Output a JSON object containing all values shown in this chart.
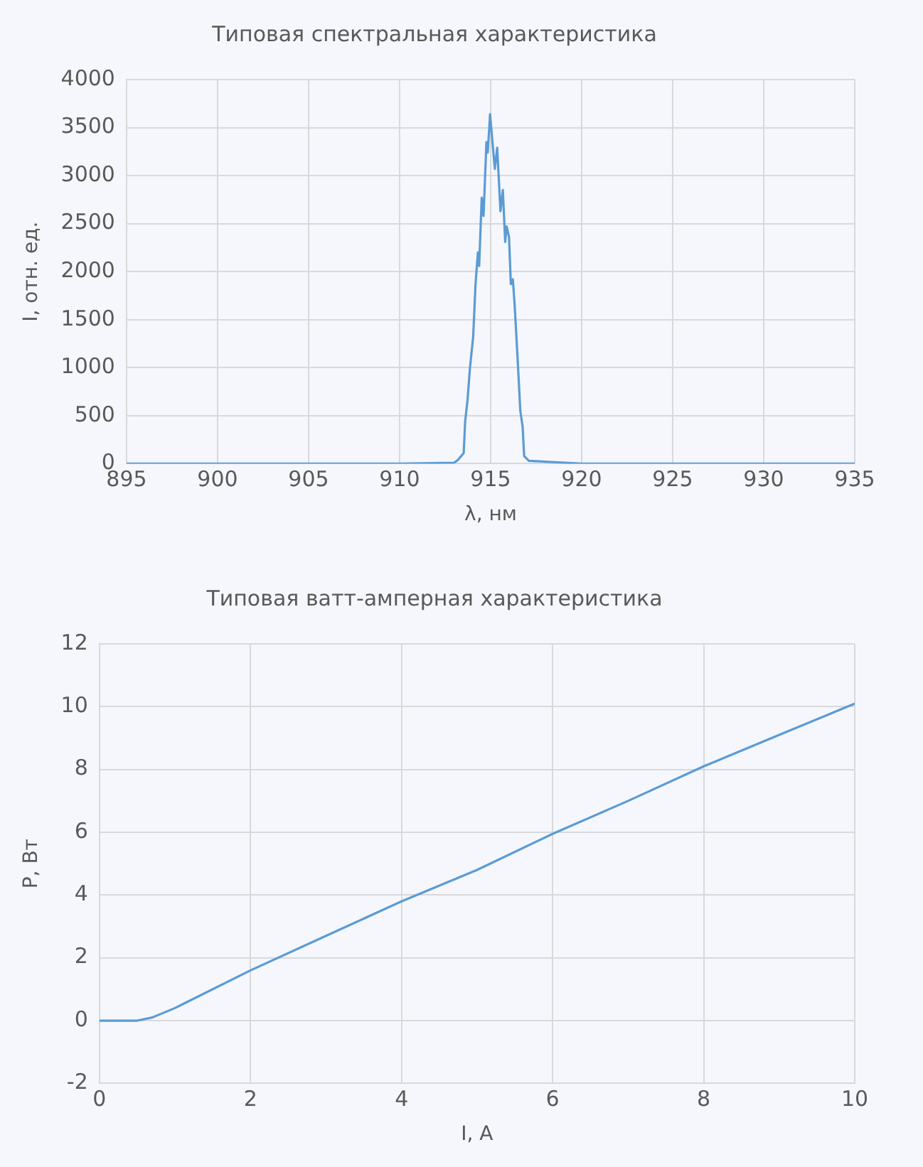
{
  "chart_data": [
    {
      "type": "line",
      "title": "Типовая спектральная характеристика",
      "xlabel": "λ, нм",
      "ylabel": "I, отн. ед.",
      "xlim": [
        895,
        935
      ],
      "xticks": [
        895,
        900,
        905,
        910,
        915,
        920,
        925,
        930,
        935
      ],
      "ylim": [
        0,
        4000
      ],
      "yticks": [
        0,
        500,
        1000,
        1500,
        2000,
        2500,
        3000,
        3500,
        4000
      ],
      "grid": true,
      "legend": false,
      "marker": "none",
      "series": [
        {
          "color": "#5b9bd5",
          "x": [
            895,
            905,
            910,
            913,
            913.21,
            913.52,
            913.6,
            913.73,
            913.86,
            914.04,
            914.17,
            914.3,
            914.37,
            914.51,
            914.61,
            914.77,
            914.84,
            914.97,
            915.1,
            915.23,
            915.36,
            915.54,
            915.67,
            915.8,
            915.88,
            916.01,
            916.11,
            916.22,
            916.32,
            916.48,
            916.63,
            916.76,
            916.84,
            917.1,
            920,
            935
          ],
          "values": [
            0,
            0,
            0,
            10,
            40,
            110,
            440,
            660,
            990,
            1320,
            1870,
            2200,
            2060,
            2770,
            2580,
            3350,
            3240,
            3640,
            3350,
            3070,
            3290,
            2630,
            2850,
            2310,
            2470,
            2360,
            1870,
            1920,
            1650,
            1100,
            550,
            380,
            80,
            30,
            0,
            0
          ]
        }
      ]
    },
    {
      "type": "line",
      "title": "Типовая ватт-амперная характеристика",
      "xlabel": "I, А",
      "ylabel": "P, Вт",
      "xlim": [
        0,
        10
      ],
      "xticks": [
        0,
        2,
        4,
        6,
        8,
        10
      ],
      "ylim": [
        -2,
        12
      ],
      "yticks": [
        -2,
        0,
        2,
        4,
        6,
        8,
        10,
        12
      ],
      "grid": true,
      "legend": false,
      "marker": "none",
      "series": [
        {
          "color": "#5b9bd5",
          "x": [
            0,
            0.5,
            0.7,
            1,
            2,
            3,
            4,
            5,
            6,
            7,
            8,
            9,
            10
          ],
          "values": [
            0,
            0,
            0.1,
            0.4,
            1.6,
            2.7,
            3.8,
            4.8,
            5.95,
            7.0,
            8.1,
            9.1,
            10.1
          ]
        }
      ]
    }
  ]
}
